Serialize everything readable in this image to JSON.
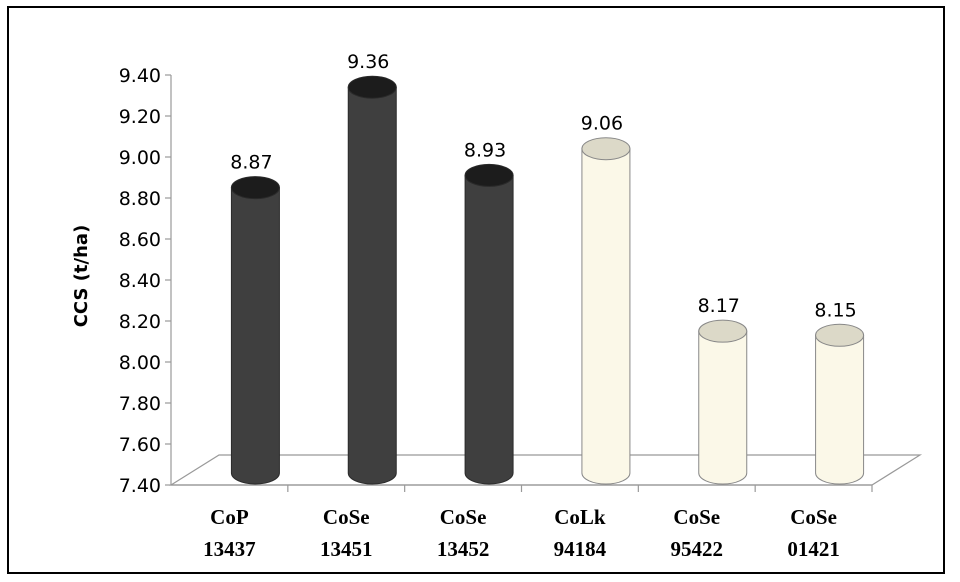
{
  "chart_data": {
    "type": "bar",
    "title": "",
    "xlabel": "",
    "ylabel": "CCS (t/ha)",
    "ylim": [
      7.4,
      9.4
    ],
    "yticks": [
      "7.40",
      "7.60",
      "7.80",
      "8.00",
      "8.20",
      "8.40",
      "8.60",
      "8.80",
      "9.00",
      "9.20",
      "9.40"
    ],
    "categories": [
      [
        "CoP",
        "13437"
      ],
      [
        "CoSe",
        "13451"
      ],
      [
        "CoSe",
        "13452"
      ],
      [
        "CoLk",
        "94184"
      ],
      [
        "CoSe",
        "95422"
      ],
      [
        "CoSe",
        "01421"
      ]
    ],
    "values": [
      8.87,
      9.36,
      8.93,
      9.06,
      8.17,
      8.15
    ],
    "value_labels": [
      "8.87",
      "9.36",
      "8.93",
      "9.06",
      "8.17",
      "8.15"
    ],
    "bar_style": [
      "dark",
      "dark",
      "dark",
      "light",
      "light",
      "light"
    ],
    "grid": false,
    "legend": "none",
    "colors": {
      "dark": "#3f3f3f",
      "dark_top": "#1c1c1c",
      "light": "#fbf8e8",
      "light_top": "#dcd9c8",
      "outline": "#888888"
    }
  }
}
